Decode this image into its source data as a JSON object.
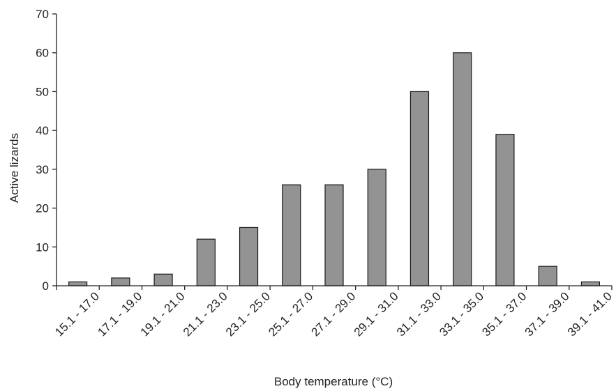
{
  "chart_data": {
    "type": "bar",
    "categories": [
      "15.1 - 17.0",
      "17.1 - 19.0",
      "19.1 - 21.0",
      "21.1 - 23.0",
      "23.1 - 25.0",
      "25.1 - 27.0",
      "27.1 - 29.0",
      "29.1 - 31.0",
      "31.1 - 33.0",
      "33.1 - 35.0",
      "35.1 - 37.0",
      "37.1 - 39.0",
      "39.1 - 41.0"
    ],
    "values": [
      1,
      2,
      3,
      12,
      15,
      26,
      26,
      30,
      50,
      60,
      39,
      5,
      1
    ],
    "xlabel": "Body temperature (°C)",
    "ylabel": "Active lizards",
    "ylim": [
      0,
      70
    ],
    "yticks": [
      0,
      10,
      20,
      30,
      40,
      50,
      60,
      70
    ],
    "bar_color": "#939393",
    "grid": false,
    "legend": "none"
  }
}
